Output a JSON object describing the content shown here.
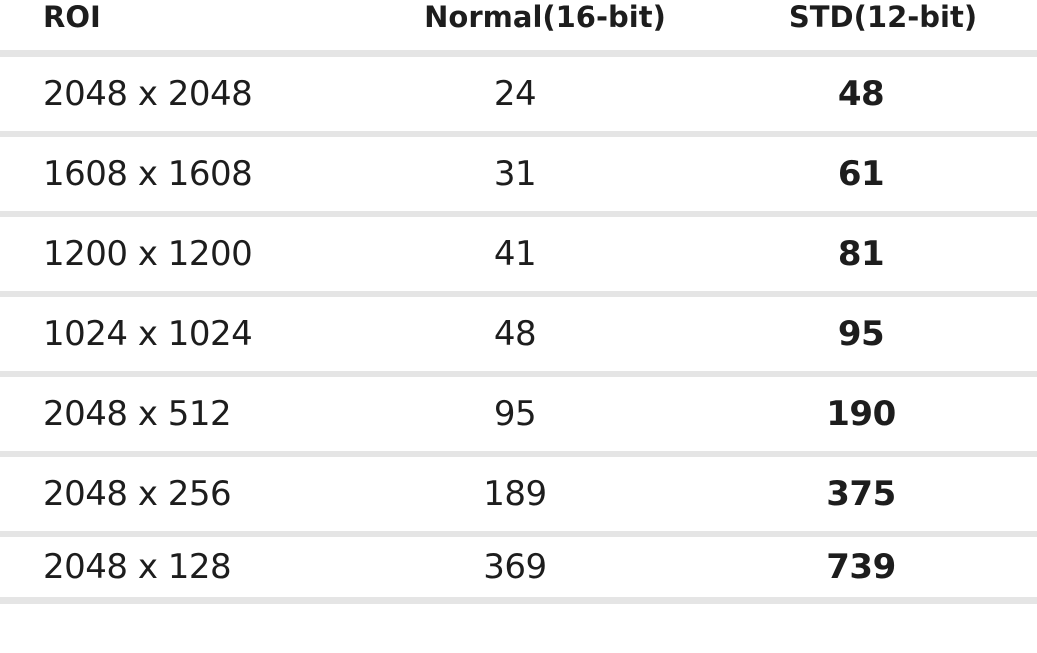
{
  "chart_data": {
    "type": "table",
    "title": "",
    "columns": [
      "ROI",
      "Normal(16-bit)",
      "STD(12-bit)"
    ],
    "rows": [
      {
        "roi": "2048 x 2048",
        "normal": "24",
        "std": "48"
      },
      {
        "roi": "1608 x 1608",
        "normal": "31",
        "std": "61"
      },
      {
        "roi": "1200 x 1200",
        "normal": "41",
        "std": "81"
      },
      {
        "roi": "1024 x 1024",
        "normal": "48",
        "std": "95"
      },
      {
        "roi": "2048 x 512",
        "normal": "95",
        "std": "190"
      },
      {
        "roi": "2048 x 256",
        "normal": "189",
        "std": "375"
      },
      {
        "roi": "2048 x 128",
        "normal": "369",
        "std": "739"
      }
    ],
    "layout_hints": {
      "roi_alignment": "left",
      "normal_alignment": "center",
      "std_alignment": "center",
      "std_font_weight": "bold",
      "grid": "horizontal-dividers-only"
    }
  },
  "colors": {
    "divider": "#e5e5e5",
    "text": "#1d1d1d",
    "background": "#ffffff"
  }
}
